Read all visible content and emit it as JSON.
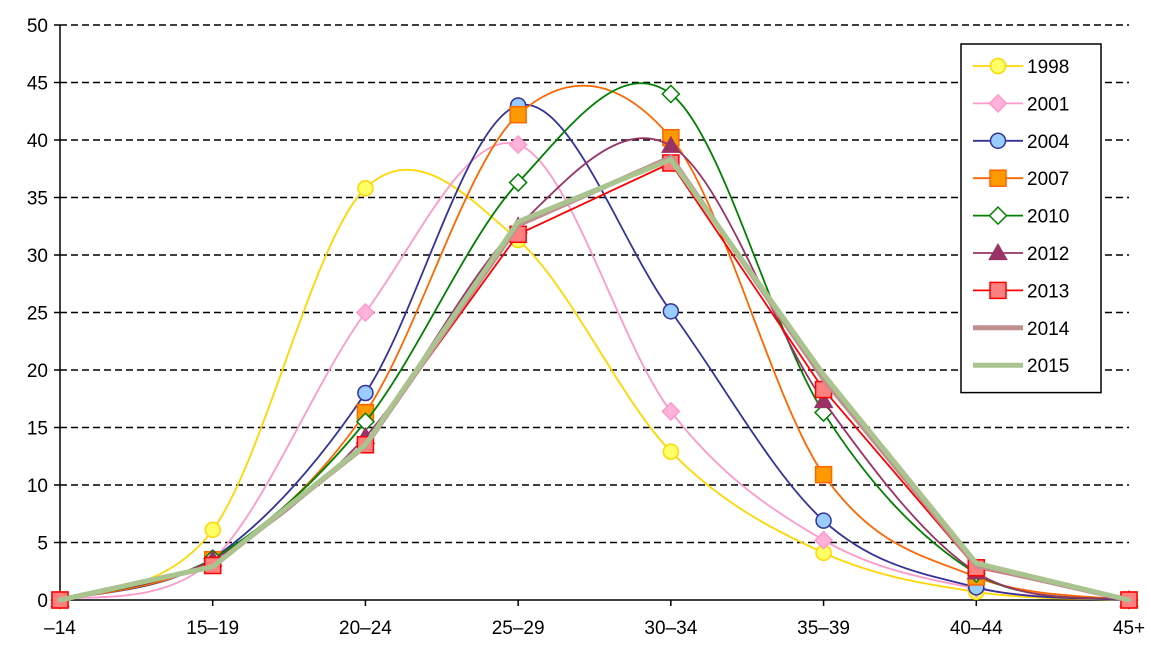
{
  "chart_data": {
    "type": "line",
    "title": "",
    "xlabel": "",
    "ylabel": "",
    "categories": [
      "–14",
      "15–19",
      "20–24",
      "25–29",
      "30–34",
      "35–39",
      "40–44",
      "45+"
    ],
    "ylim": [
      0,
      50
    ],
    "yticks": [
      0,
      5,
      10,
      15,
      20,
      25,
      30,
      35,
      40,
      45,
      50
    ],
    "grid": "horizontal dashed",
    "legend_position": "right",
    "series": [
      {
        "name": "1998",
        "color": "#FFD700",
        "marker": "circle",
        "fill": "#FFFF66",
        "smooth": true,
        "values": [
          0,
          6.1,
          35.8,
          31.3,
          12.9,
          4.1,
          0.7,
          0
        ]
      },
      {
        "name": "2001",
        "color": "#FF99CC",
        "marker": "diamond",
        "fill": "#FFB3D9",
        "smooth": true,
        "values": [
          0,
          3.5,
          25.0,
          39.6,
          16.4,
          5.2,
          1.0,
          0
        ]
      },
      {
        "name": "2004",
        "color": "#333399",
        "marker": "circle",
        "fill": "#99CCFF",
        "smooth": true,
        "values": [
          0,
          3.6,
          18.0,
          43.0,
          25.1,
          6.9,
          1.1,
          0
        ]
      },
      {
        "name": "2007",
        "color": "#FF6600",
        "marker": "square",
        "fill": "#FF9900",
        "smooth": true,
        "values": [
          0,
          3.5,
          16.3,
          42.2,
          40.2,
          10.9,
          2.0,
          0
        ]
      },
      {
        "name": "2010",
        "color": "#008000",
        "marker": "diamond",
        "fill": "#FFFFFF",
        "smooth": true,
        "values": [
          0,
          3.6,
          15.5,
          36.3,
          44.0,
          16.3,
          2.3,
          0
        ]
      },
      {
        "name": "2012",
        "color": "#993366",
        "marker": "triangle",
        "fill": "#993366",
        "smooth": true,
        "values": [
          0,
          3.5,
          14.2,
          32.5,
          39.5,
          17.3,
          2.4,
          0
        ]
      },
      {
        "name": "2013",
        "color": "#FF0000",
        "marker": "square",
        "fill": "#FF8080",
        "smooth": false,
        "values": [
          0,
          3.0,
          13.5,
          31.8,
          38.0,
          18.3,
          2.8,
          0
        ]
      },
      {
        "name": "2014",
        "color": "#C09090",
        "marker": "none",
        "fill": "",
        "smooth": false,
        "values": [
          0,
          2.9,
          13.4,
          32.6,
          38.5,
          19.2,
          3.0,
          0
        ]
      },
      {
        "name": "2015",
        "color": "#A9C48F",
        "marker": "none",
        "fill": "",
        "smooth": false,
        "values": [
          0,
          2.9,
          13.5,
          32.9,
          38.3,
          19.6,
          3.2,
          0
        ]
      }
    ]
  }
}
